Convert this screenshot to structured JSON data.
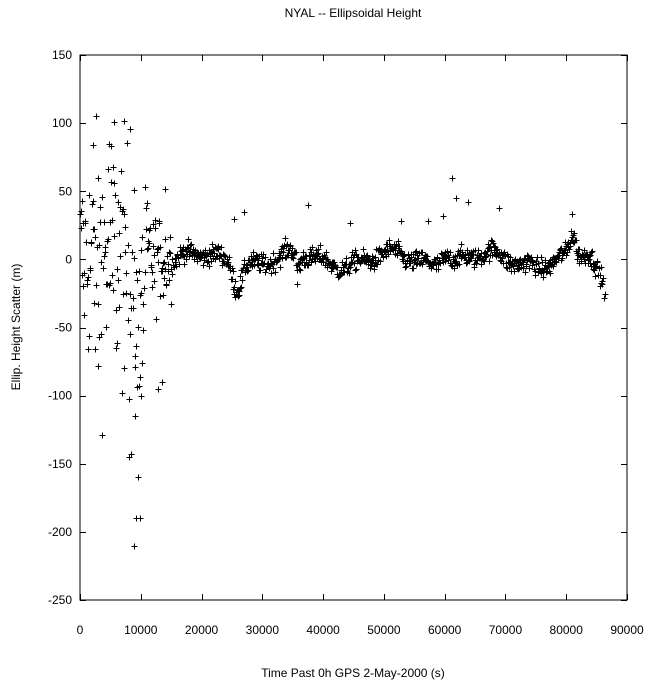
{
  "chart_data": {
    "type": "scatter",
    "title": "NYAL -- Ellipsoidal Height",
    "xlabel": "Time Past 0h GPS 2-May-2000  (s)",
    "ylabel": "Ellip. Height Scatter  (m)",
    "xlim": [
      0,
      90000
    ],
    "ylim": [
      -250,
      150
    ],
    "x_ticks": [
      0,
      10000,
      20000,
      30000,
      40000,
      50000,
      60000,
      70000,
      80000,
      90000
    ],
    "y_ticks": [
      -250,
      -200,
      -150,
      -100,
      -50,
      0,
      50,
      100,
      150
    ],
    "marker": "plus",
    "marker_color": "#000000",
    "grid": false,
    "sampling_interval_s": 30,
    "x_start": 0,
    "x_end": 86370,
    "outliers": [
      [
        5600,
        101
      ],
      [
        8200,
        96
      ],
      [
        8900,
        -210
      ],
      [
        9200,
        -190
      ],
      [
        9800,
        -190
      ],
      [
        9500,
        -160
      ],
      [
        10100,
        -100
      ],
      [
        9000,
        -115
      ],
      [
        2100,
        84
      ],
      [
        4800,
        85
      ],
      [
        12800,
        -95
      ],
      [
        13500,
        -90
      ],
      [
        14000,
        52
      ],
      [
        25300,
        30
      ],
      [
        27000,
        35
      ],
      [
        37500,
        40
      ],
      [
        44500,
        27
      ],
      [
        52800,
        28
      ],
      [
        57200,
        28
      ],
      [
        59800,
        32
      ],
      [
        61200,
        60
      ],
      [
        61800,
        45
      ],
      [
        63800,
        42
      ],
      [
        68900,
        38
      ],
      [
        81000,
        33
      ],
      [
        35700,
        -18
      ],
      [
        7200,
        -80
      ],
      [
        3000,
        -78
      ]
    ],
    "segments": [
      {
        "x_from": 0,
        "x_to": 15000,
        "description": "large scatter",
        "y_range": [
          -120,
          100
        ]
      },
      {
        "x_from": 15000,
        "x_to": 86370,
        "description": "stable",
        "y_range": [
          -25,
          25
        ]
      }
    ]
  }
}
